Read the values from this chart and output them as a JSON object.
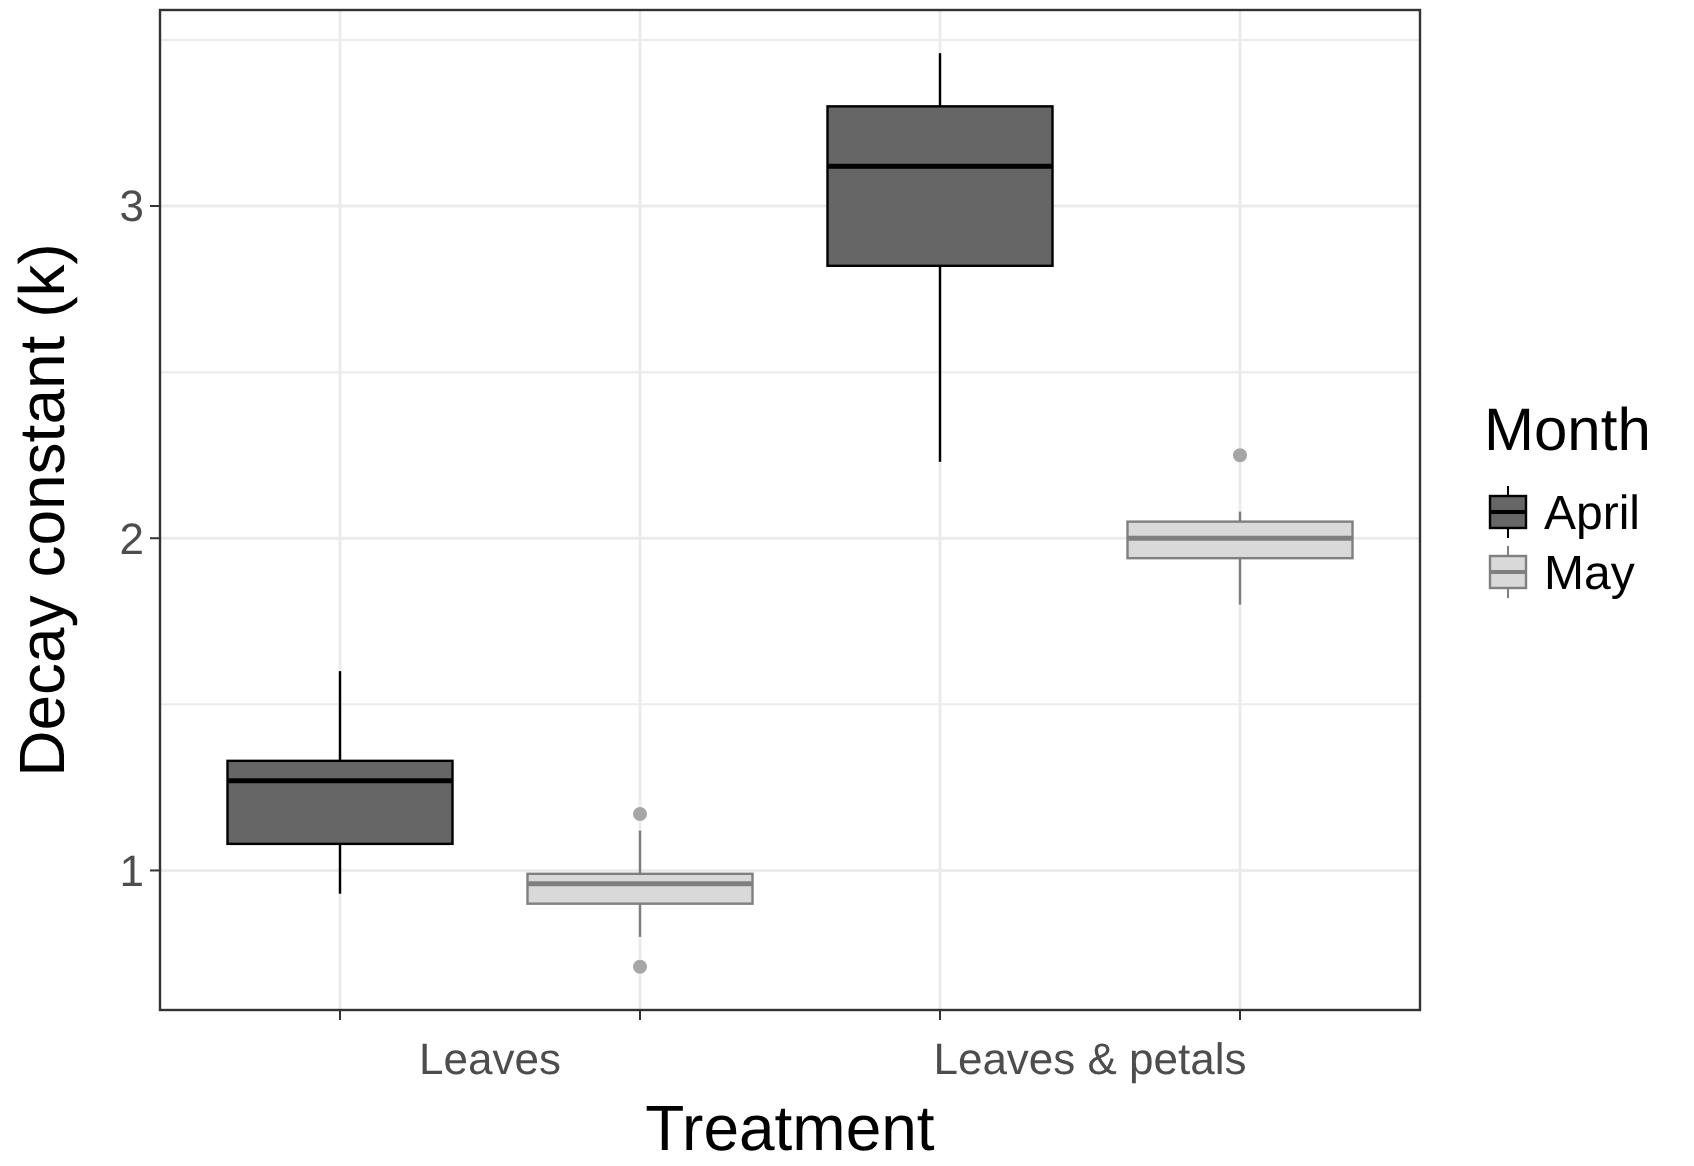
{
  "chart_data": {
    "type": "box",
    "xlabel": "Treatment",
    "ylabel": "Decay constant (k)",
    "legend_title": "Month",
    "legend": "right",
    "categories": [
      "Leaves",
      "Leaves & petals"
    ],
    "series": [
      {
        "name": "April",
        "color": "#666666",
        "boxes": [
          {
            "low": 0.93,
            "q1": 1.08,
            "median": 1.27,
            "q3": 1.33,
            "high": 1.6
          },
          {
            "low": 2.23,
            "q1": 2.82,
            "median": 3.12,
            "q3": 3.3,
            "high": 3.46
          }
        ]
      },
      {
        "name": "May",
        "color": "#d9d9d9",
        "boxes": [
          {
            "low": 0.8,
            "q1": 0.9,
            "median": 0.96,
            "q3": 0.99,
            "high": 1.12,
            "outliers": [
              1.17,
              0.71
            ]
          },
          {
            "low": 1.8,
            "q1": 1.94,
            "median": 2.0,
            "q3": 2.05,
            "high": 2.08,
            "outliers": [
              2.25
            ]
          }
        ]
      }
    ],
    "ylim": [
      0.58,
      3.59
    ],
    "yticks": [
      1,
      2,
      3
    ],
    "grid": true
  }
}
